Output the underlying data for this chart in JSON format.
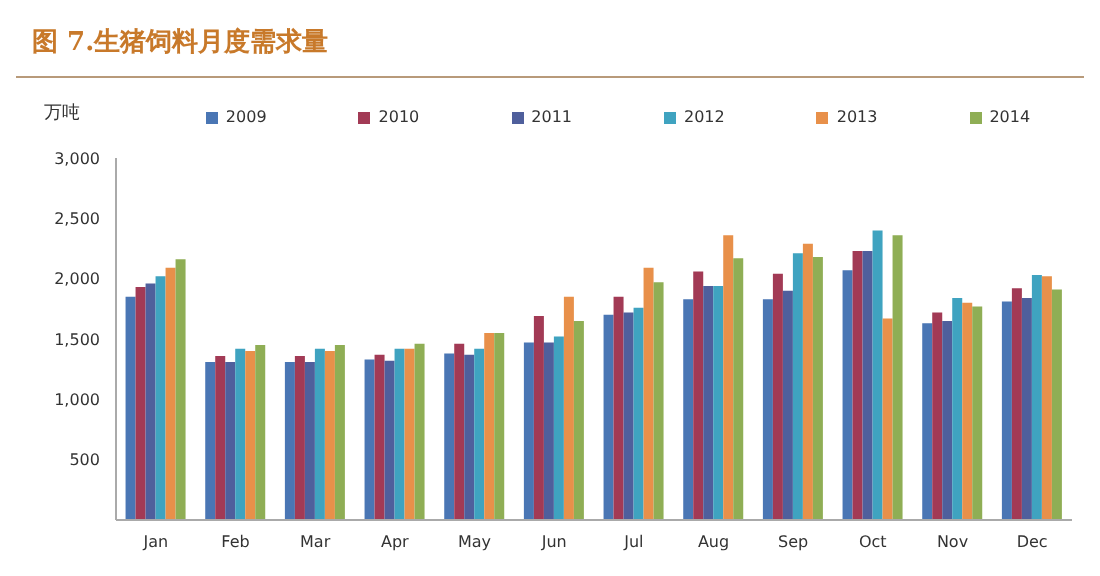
{
  "chart_data": {
    "type": "bar",
    "title": "图 7.生猪饲料月度需求量",
    "ylabel": "万吨",
    "categories": [
      "Jan",
      "Feb",
      "Mar",
      "Apr",
      "May",
      "Jun",
      "Jul",
      "Aug",
      "Sep",
      "Oct",
      "Nov",
      "Dec"
    ],
    "series": [
      {
        "name": "2009",
        "color": "#4a76b4",
        "values": [
          1850,
          1310,
          1310,
          1330,
          1380,
          1470,
          1700,
          1830,
          1830,
          2070,
          1630,
          1810
        ]
      },
      {
        "name": "2010",
        "color": "#a23a55",
        "values": [
          1930,
          1360,
          1360,
          1370,
          1460,
          1690,
          1850,
          2060,
          2040,
          2230,
          1720,
          1920
        ]
      },
      {
        "name": "2011",
        "color": "#4f5f9c",
        "values": [
          1960,
          1310,
          1310,
          1320,
          1370,
          1470,
          1720,
          1940,
          1900,
          2230,
          1650,
          1840
        ]
      },
      {
        "name": "2012",
        "color": "#3fa3c0",
        "values": [
          2020,
          1420,
          1420,
          1420,
          1420,
          1520,
          1760,
          1940,
          2210,
          2400,
          1840,
          2030
        ]
      },
      {
        "name": "2013",
        "color": "#e8904a",
        "values": [
          2090,
          1400,
          1400,
          1420,
          1550,
          1850,
          2090,
          2360,
          2290,
          1670,
          1800,
          2020
        ]
      },
      {
        "name": "2014",
        "color": "#8fae55",
        "values": [
          2160,
          1450,
          1450,
          1460,
          1550,
          1650,
          1970,
          2170,
          2180,
          2360,
          1770,
          1910
        ]
      }
    ],
    "ylim": [
      0,
      3000
    ],
    "yticks": [
      {
        "value": 0,
        "label": null
      },
      {
        "value": 500,
        "label": "500"
      },
      {
        "value": 1000,
        "label": "1,000"
      },
      {
        "value": 1500,
        "label": "1,500"
      },
      {
        "value": 2000,
        "label": "2,000"
      },
      {
        "value": 2500,
        "label": "2,500"
      },
      {
        "value": 3000,
        "label": "3,000"
      }
    ],
    "grid": false,
    "legend": "top"
  }
}
